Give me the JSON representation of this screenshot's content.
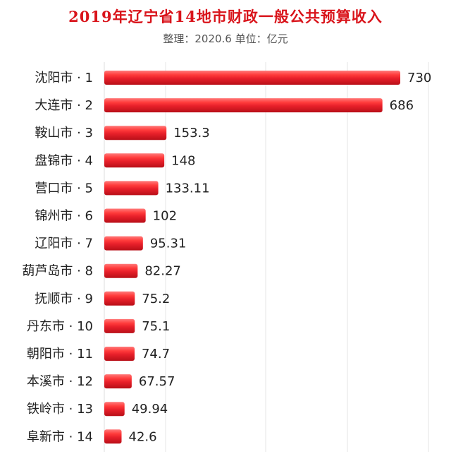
{
  "chart_data": {
    "type": "bar",
    "orientation": "horizontal",
    "title": "2019年辽宁省14地市财政一般公共预算收入",
    "subtitle": "整理：2020.6    单位：亿元",
    "categories": [
      "沈阳市 · 1",
      "大连市 · 2",
      "鞍山市 · 3",
      "盘锦市 · 4",
      "营口市 · 5",
      "锦州市 · 6",
      "辽阳市 · 7",
      "葫芦岛市 · 8",
      "抚顺市 · 9",
      "丹东市 · 10",
      "朝阳市 · 11",
      "本溪市 · 12",
      "铁岭市 · 13",
      "阜新市 · 14"
    ],
    "values": [
      730,
      686,
      153.3,
      148,
      133.11,
      102,
      95.31,
      82.27,
      75.2,
      75.1,
      74.7,
      67.57,
      49.94,
      42.6
    ],
    "value_labels": [
      "730",
      "686",
      "153.3",
      "148",
      "133.11",
      "102",
      "95.31",
      "82.27",
      "75.2",
      "75.1",
      "74.7",
      "67.57",
      "49.94",
      "42.6"
    ],
    "xlim": [
      0,
      730
    ],
    "grid": "vertical",
    "legend": "none"
  },
  "colors": {
    "title": "#d9141b",
    "bar": "#e8202a",
    "bar_highlight": "#ff9a9a",
    "grid": "#e6e6e6",
    "border": "#dddddd"
  }
}
